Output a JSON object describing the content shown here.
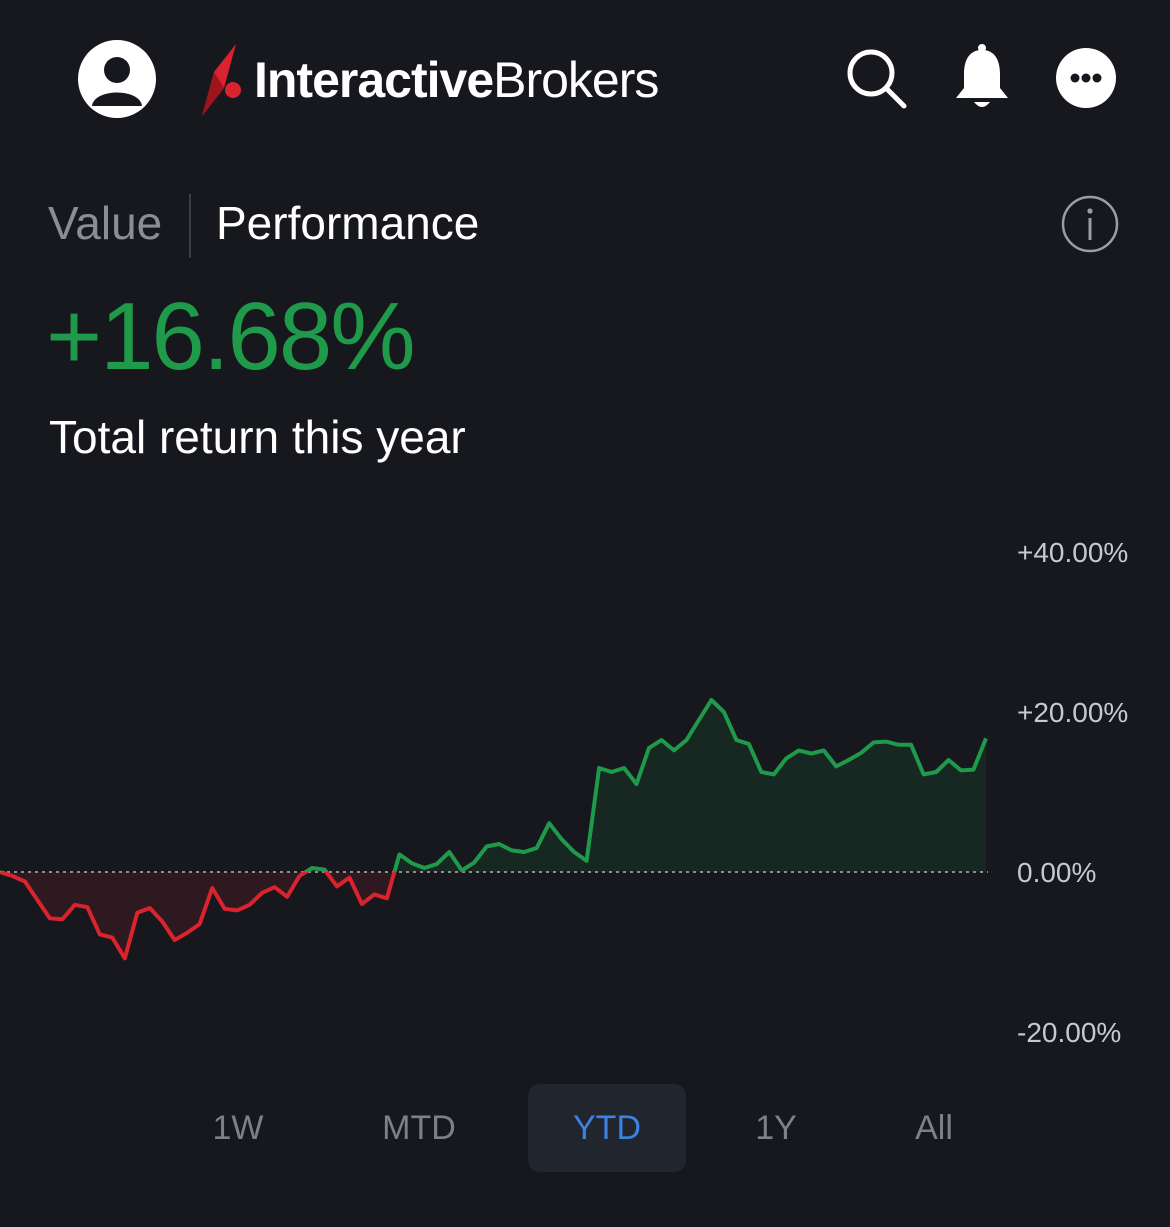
{
  "header": {
    "brand_bold": "Interactive",
    "brand_regular": "Brokers",
    "icons": [
      "avatar-icon",
      "search-icon",
      "bell-icon",
      "more-icon"
    ]
  },
  "tabs": [
    {
      "label": "Value",
      "active": false
    },
    {
      "label": "Performance",
      "active": true
    }
  ],
  "summary": {
    "return_value": "+16.68%",
    "caption": "Total return this year"
  },
  "colors": {
    "background": "#16181d",
    "positive": "#1f9a4a",
    "negative": "#d9232e",
    "active_range": "#3d82e0"
  },
  "chart_data": {
    "type": "line",
    "y_unit": "%",
    "ylim": [
      -20,
      40
    ],
    "yticks": [
      {
        "value": 40,
        "label": "+40.00%"
      },
      {
        "value": 20,
        "label": "+20.00%"
      },
      {
        "value": 0,
        "label": "0.00%"
      },
      {
        "value": -20,
        "label": "-20.00%"
      }
    ],
    "baseline": 0,
    "grid": false,
    "values": [
      0,
      -0.5,
      -1.2,
      -3.5,
      -5.8,
      -5.9,
      -4.1,
      -4.4,
      -7.8,
      -8.2,
      -10.8,
      -5.1,
      -4.5,
      -6.2,
      -8.5,
      -7.6,
      -6.5,
      -2.0,
      -4.6,
      -4.8,
      -4.1,
      -2.6,
      -1.9,
      -3.1,
      -0.5,
      0.5,
      0.3,
      -1.8,
      -0.7,
      -4.0,
      -2.8,
      -3.3,
      2.2,
      1.1,
      0.5,
      1.0,
      2.5,
      0.2,
      1.2,
      3.2,
      3.5,
      2.7,
      2.5,
      3.0,
      6.1,
      4.1,
      2.5,
      1.4,
      13.0,
      12.5,
      13.0,
      11.0,
      15.5,
      16.5,
      15.2,
      16.5,
      19.0,
      21.5,
      20.0,
      16.5,
      16.0,
      12.5,
      12.2,
      14.2,
      15.2,
      14.8,
      15.2,
      13.2,
      14.0,
      14.9,
      16.2,
      16.3,
      15.9,
      15.9,
      12.2,
      12.5,
      14.0,
      12.7,
      12.8,
      16.7
    ]
  },
  "ranges": [
    {
      "label": "1W",
      "active": false
    },
    {
      "label": "MTD",
      "active": false
    },
    {
      "label": "YTD",
      "active": true
    },
    {
      "label": "1Y",
      "active": false
    },
    {
      "label": "All",
      "active": false
    }
  ]
}
